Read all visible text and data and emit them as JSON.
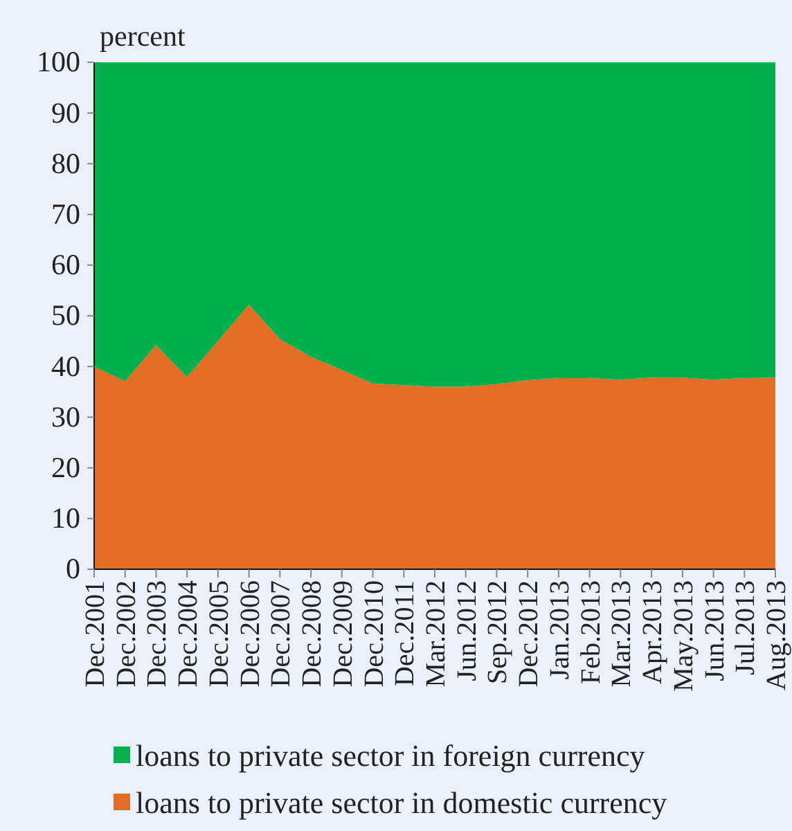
{
  "chart_data": {
    "type": "area",
    "stacked": true,
    "ylabel": "percent",
    "categories": [
      "Dec.2001",
      "Dec.2002",
      "Dec.2003",
      "Dec.2004",
      "Dec.2005",
      "Dec.2006",
      "Dec.2007",
      "Dec.2008",
      "Dec.2009",
      "Dec.2010",
      "Dec.2011",
      "Mar.2012",
      "Jun.2012",
      "Sep.2012",
      "Dec.2012",
      "Jan.2013",
      "Feb.2013",
      "Mar.2013",
      "Apr.2013",
      "May.2013",
      "Jun.2013",
      "Jul.2013",
      "Aug.2013"
    ],
    "series": [
      {
        "name": "loans to private sector in domestic currency",
        "color": "#e26d25",
        "values": [
          40,
          37.1,
          44.2,
          37.9,
          45,
          52.2,
          45.4,
          41.9,
          39.3,
          36.6,
          36.3,
          36,
          36,
          36.5,
          37.3,
          37.7,
          37.7,
          37.4,
          37.8,
          37.8,
          37.4,
          37.7,
          37.8
        ]
      },
      {
        "name": "loans to private sector in foreign currency",
        "color": "#00b04f",
        "values": [
          60,
          62.9,
          55.8,
          62.1,
          55,
          47.8,
          54.6,
          58.1,
          60.7,
          63.4,
          63.7,
          64,
          64,
          63.5,
          62.7,
          62.3,
          62.3,
          62.6,
          62.2,
          62.2,
          62.6,
          62.3,
          62.2
        ]
      }
    ],
    "ylim": [
      0,
      100
    ],
    "yticks": [
      0,
      10,
      20,
      30,
      40,
      50,
      60,
      70,
      80,
      90,
      100
    ],
    "grid": false,
    "legend": "bottom"
  }
}
